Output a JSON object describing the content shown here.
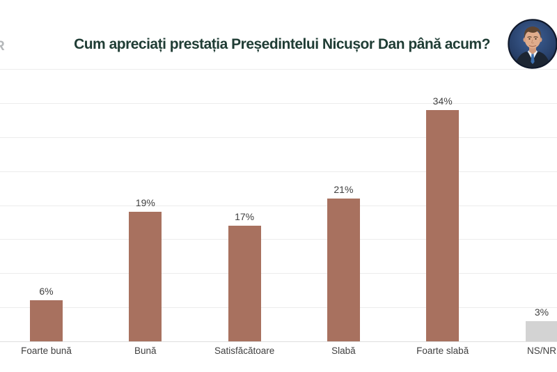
{
  "header": {
    "watermark_fragment": "R"
  },
  "theme": {
    "title_color": "#203d35",
    "label_color": "#3f3f3f",
    "grid_color": "#ececec",
    "axis_line_color": "#dedede",
    "bar_color": "#a8715f",
    "ns_nr_bar_color": "#d3d3d3"
  },
  "chart_data": {
    "type": "bar",
    "title": "Cum apreciați prestația Președintelui Nicușor Dan până acum?",
    "categories": [
      "Foarte bună",
      "Bună",
      "Satisfăcătoare",
      "Slabă",
      "Foarte slabă",
      "NS/NR"
    ],
    "values": [
      6,
      19,
      17,
      21,
      34,
      3
    ],
    "value_suffix": "%",
    "bar_colors": [
      "#a8715f",
      "#a8715f",
      "#a8715f",
      "#a8715f",
      "#a8715f",
      "#d3d3d3"
    ],
    "xlabel": "",
    "ylabel": "",
    "ylim": [
      0,
      40
    ],
    "grid": true,
    "grid_step": 5,
    "y_tick_labels_shown": false,
    "legend": false,
    "value_labels_position": "above bars",
    "note": "sixth bar (NS/NR) partially cut off at right edge of image"
  }
}
